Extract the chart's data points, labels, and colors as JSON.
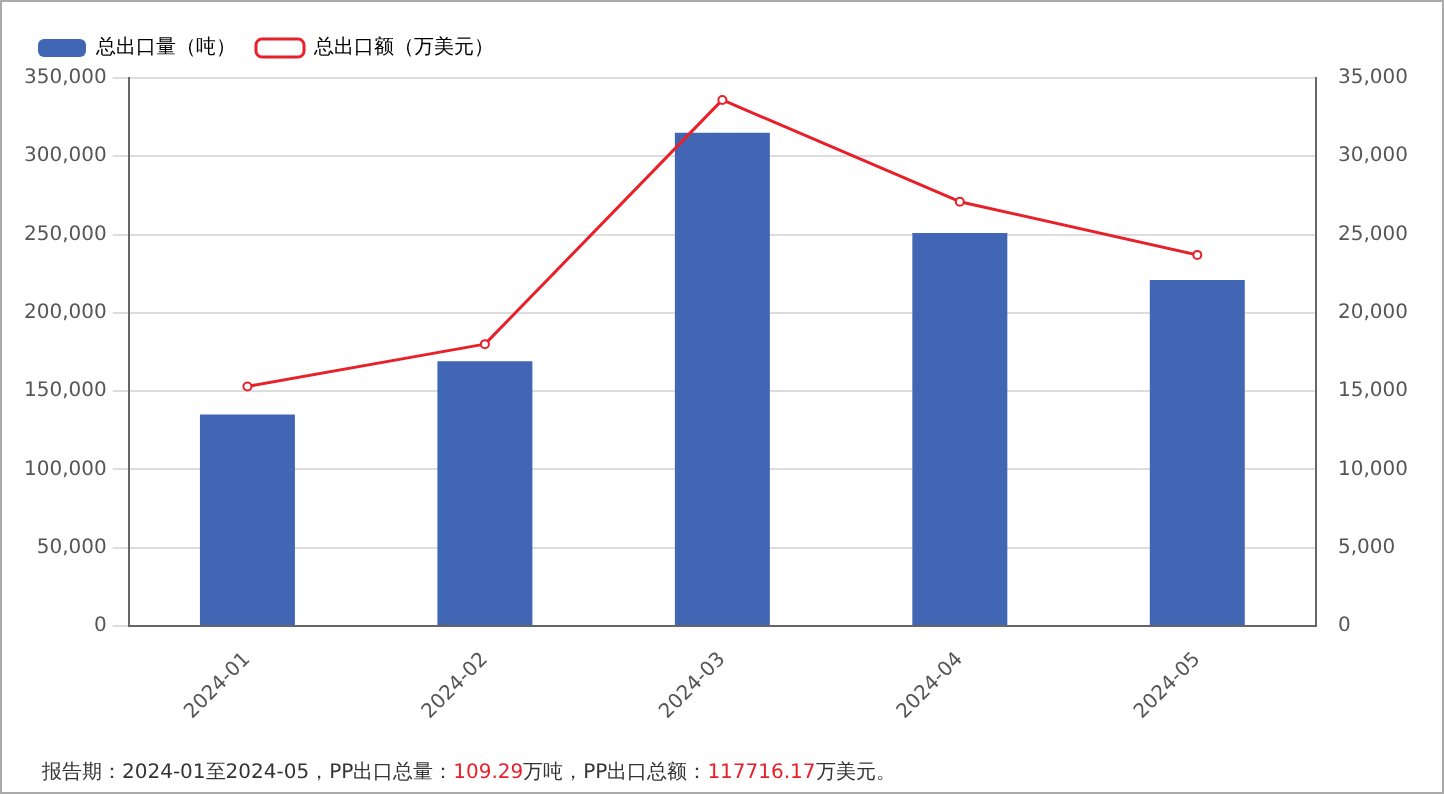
{
  "chart_data": {
    "type": "bar",
    "categories": [
      "2024-01",
      "2024-02",
      "2024-03",
      "2024-04",
      "2024-05"
    ],
    "series": [
      {
        "name": "总出口量（吨）",
        "color": "#4066b4",
        "values": [
          135000,
          169000,
          315000,
          251000,
          221000
        ]
      },
      {
        "name": "总出口额（万美元）",
        "type": "line",
        "axis": "y2",
        "color": "#e8202a",
        "values": [
          15300,
          18000,
          33600,
          27100,
          23700
        ]
      }
    ],
    "ylim": [
      0,
      350000
    ],
    "yticks": [
      0,
      {
        "value": 50000,
        "label": "50,000"
      },
      {
        "value": 100000,
        "label": "100,000"
      },
      {
        "value": 150000,
        "label": "150,000"
      },
      {
        "value": 200000,
        "label": "200,000"
      },
      {
        "value": 250000,
        "label": "250,000"
      },
      {
        "value": 300000,
        "label": "300,000"
      },
      {
        "value": 350000,
        "label": "350,000"
      }
    ],
    "y2lim": [
      0,
      35000
    ],
    "y2ticks": [
      0,
      {
        "value": 5000,
        "label": "5,000"
      },
      {
        "value": 10000,
        "label": "10,000"
      },
      {
        "value": 15000,
        "label": "15,000"
      },
      {
        "value": 20000,
        "label": "20,000"
      },
      {
        "value": 25000,
        "label": "25,000"
      },
      {
        "value": 30000,
        "label": "30,000"
      },
      {
        "value": 35000,
        "label": "35,000"
      }
    ],
    "grid": "y",
    "legend": "top left",
    "marker": "circle",
    "line_style": "solid",
    "annotations": [
      "报告期：2024-01至2024-05，PP出口总量：109.29万吨，PP出口总额：117716.17万美元。"
    ]
  }
}
